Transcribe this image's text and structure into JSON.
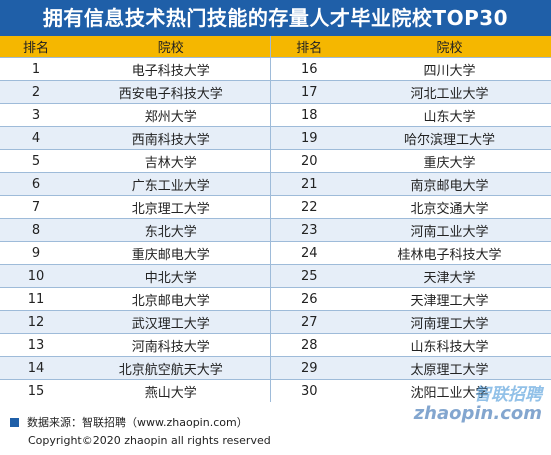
{
  "title": "拥有信息技术热门技能的存量人才毕业院校TOP30",
  "headers": {
    "rank": "排名",
    "school": "院校"
  },
  "rows": [
    {
      "l_rank": "1",
      "l_school": "电子科技大学",
      "r_rank": "16",
      "r_school": "四川大学"
    },
    {
      "l_rank": "2",
      "l_school": "西安电子科技大学",
      "r_rank": "17",
      "r_school": "河北工业大学"
    },
    {
      "l_rank": "3",
      "l_school": "郑州大学",
      "r_rank": "18",
      "r_school": "山东大学"
    },
    {
      "l_rank": "4",
      "l_school": "西南科技大学",
      "r_rank": "19",
      "r_school": "哈尔滨理工大学"
    },
    {
      "l_rank": "5",
      "l_school": "吉林大学",
      "r_rank": "20",
      "r_school": "重庆大学"
    },
    {
      "l_rank": "6",
      "l_school": "广东工业大学",
      "r_rank": "21",
      "r_school": "南京邮电大学"
    },
    {
      "l_rank": "7",
      "l_school": "北京理工大学",
      "r_rank": "22",
      "r_school": "北京交通大学"
    },
    {
      "l_rank": "8",
      "l_school": "东北大学",
      "r_rank": "23",
      "r_school": "河南工业大学"
    },
    {
      "l_rank": "9",
      "l_school": "重庆邮电大学",
      "r_rank": "24",
      "r_school": "桂林电子科技大学"
    },
    {
      "l_rank": "10",
      "l_school": "中北大学",
      "r_rank": "25",
      "r_school": "天津大学"
    },
    {
      "l_rank": "11",
      "l_school": "北京邮电大学",
      "r_rank": "26",
      "r_school": "天津理工大学"
    },
    {
      "l_rank": "12",
      "l_school": "武汉理工大学",
      "r_rank": "27",
      "r_school": "河南理工大学"
    },
    {
      "l_rank": "13",
      "l_school": "河南科技大学",
      "r_rank": "28",
      "r_school": "山东科技大学"
    },
    {
      "l_rank": "14",
      "l_school": "北京航空航天大学",
      "r_rank": "29",
      "r_school": "太原理工大学"
    },
    {
      "l_rank": "15",
      "l_school": "燕山大学",
      "r_rank": "30",
      "r_school": "沈阳工业大学"
    }
  ],
  "source": "数据来源：智联招聘（www.zhaopin.com）",
  "copyright": "Copyright©2020 zhaopin all rights reserved",
  "watermark": {
    "cn": "智联招聘",
    "en": "zhaopin.com"
  },
  "colors": {
    "title_bg": "#1f5fa8",
    "header_bg": "#f5b700",
    "row_alt": "#e6eef8"
  }
}
